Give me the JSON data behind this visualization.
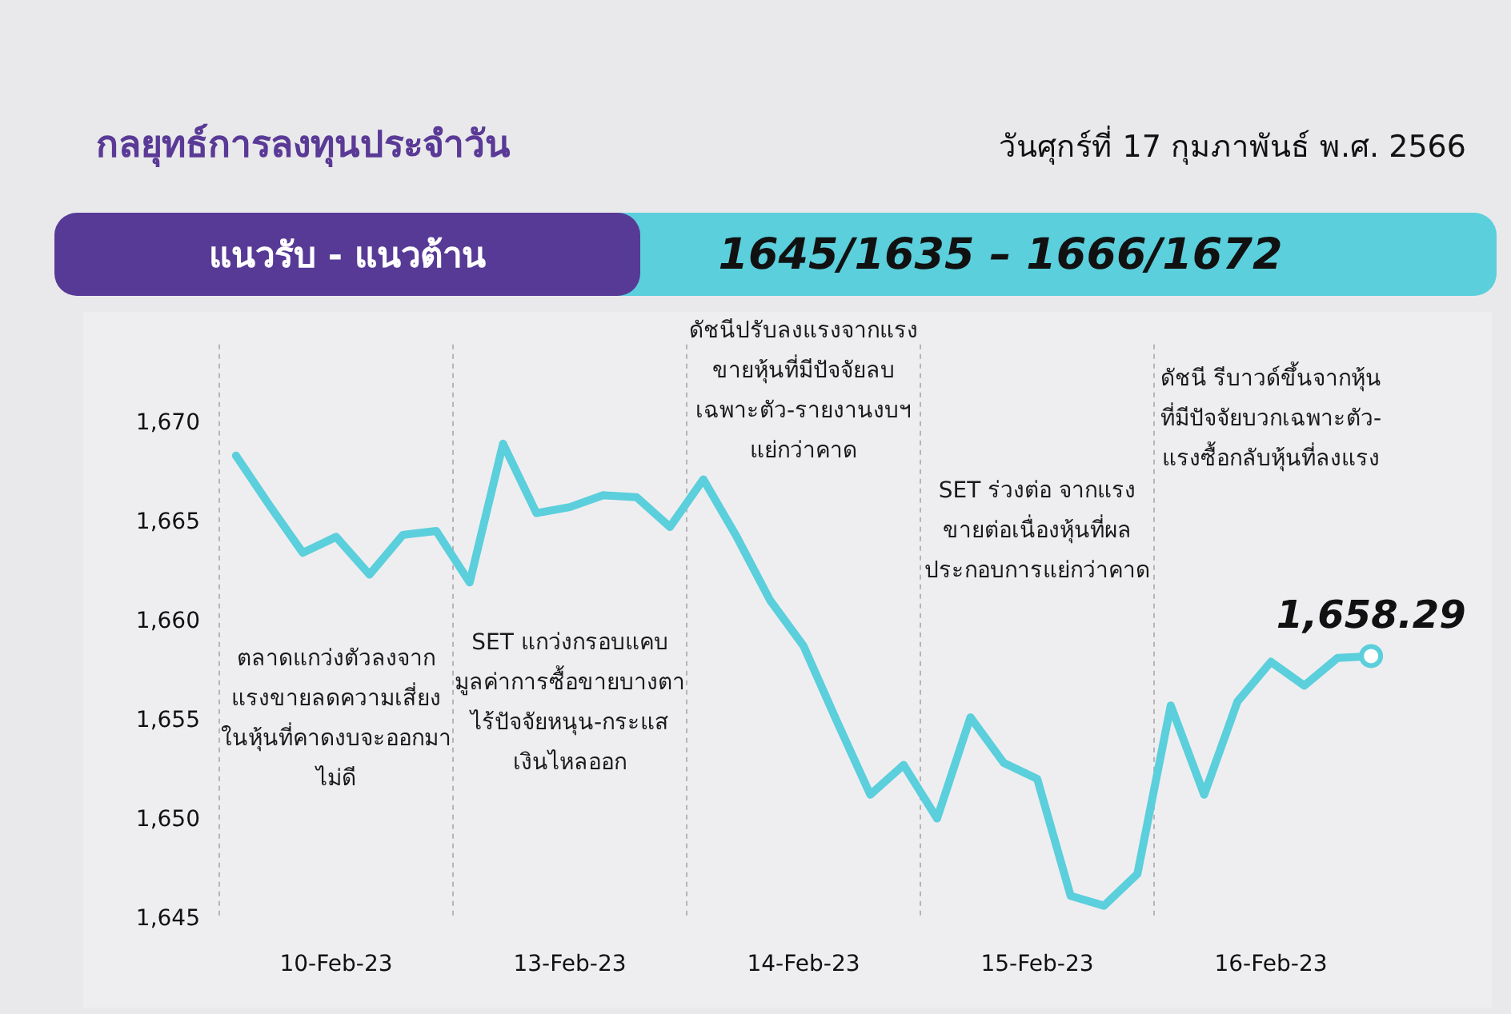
{
  "chart_data": {
    "type": "line",
    "title": "กลยุทธ์การลงทุนประจำวัน",
    "subtitle": "วันศุกร์ที่ 17 กุมภาพันธ์ พ.ศ. 2566",
    "annotations": [
      "แนวรับ - แนวต้าน",
      "1645/1635 – 1666/1672",
      "ตลาดแกว่งตัวลงจากแรงขายลดความเสี่ยงในหุ้นที่คาดงบจะออกมาไม่ดี",
      "SET แกว่งกรอบแคบ มูลค่าการซื้อขายบางตา ไร้ปัจจัยหนุน-กระแสเงินไหลออก",
      "ดัชนีปรับลงแรงจากแรงขายหุ้นที่มีปัจจัยลบเฉพาะตัว-รายงานงบฯ แย่กว่าคาด",
      "SET  ร่วงต่อ จากแรงขายต่อเนื่องหุ้นที่ผลประกอบการแย่กว่าคาด",
      "ดัชนี รีบาวด์ขึ้นจากหุ้นที่มีปัจจัยบวกเฉพาะตัว-แรงซื้อกลับหุ้นที่ลงแรง"
    ],
    "categories": [
      null,
      null,
      null,
      "10-Feb-23",
      null,
      null,
      null,
      null,
      null,
      null,
      "13-Feb-23",
      null,
      null,
      null,
      null,
      null,
      null,
      "14-Feb-23",
      null,
      null,
      null,
      null,
      null,
      null,
      "15-Feb-23",
      null,
      null,
      null,
      null,
      null,
      null,
      "16-Feb-23",
      null,
      null,
      null
    ],
    "series": [
      {
        "color": "#5bcfdc",
        "values": [
          1668.4,
          1665.9,
          1663.5,
          1664.3,
          1662.4,
          1664.4,
          1664.6,
          1662.0,
          1669.0,
          1665.5,
          1665.8,
          1666.4,
          1666.3,
          1664.8,
          1667.2,
          1664.3,
          1661.1,
          1658.8,
          1655.0,
          1651.3,
          1652.8,
          1650.1,
          1655.2,
          1652.9,
          1652.1,
          1646.2,
          1645.7,
          1647.3,
          1655.8,
          1651.3,
          1656.0,
          1658.0,
          1656.8,
          1658.2,
          1658.29
        ],
        "value_labels": [
          null,
          null,
          null,
          null,
          null,
          null,
          null,
          null,
          null,
          null,
          null,
          null,
          null,
          null,
          null,
          null,
          null,
          null,
          null,
          null,
          null,
          null,
          null,
          null,
          null,
          null,
          null,
          null,
          null,
          null,
          null,
          null,
          null,
          null,
          "1,658.29"
        ]
      }
    ],
    "ylim": [
      1645,
      1674
    ],
    "yticks": [
      {
        "value": 1645,
        "label": "1,645"
      },
      {
        "value": 1650,
        "label": "1,650"
      },
      {
        "value": 1655,
        "label": "1,655"
      },
      {
        "value": 1660,
        "label": "1,660"
      },
      {
        "value": 1665,
        "label": "1,665"
      },
      {
        "value": 1670,
        "label": "1,670"
      }
    ],
    "grid": "x",
    "legend": false,
    "marker": "none"
  }
}
